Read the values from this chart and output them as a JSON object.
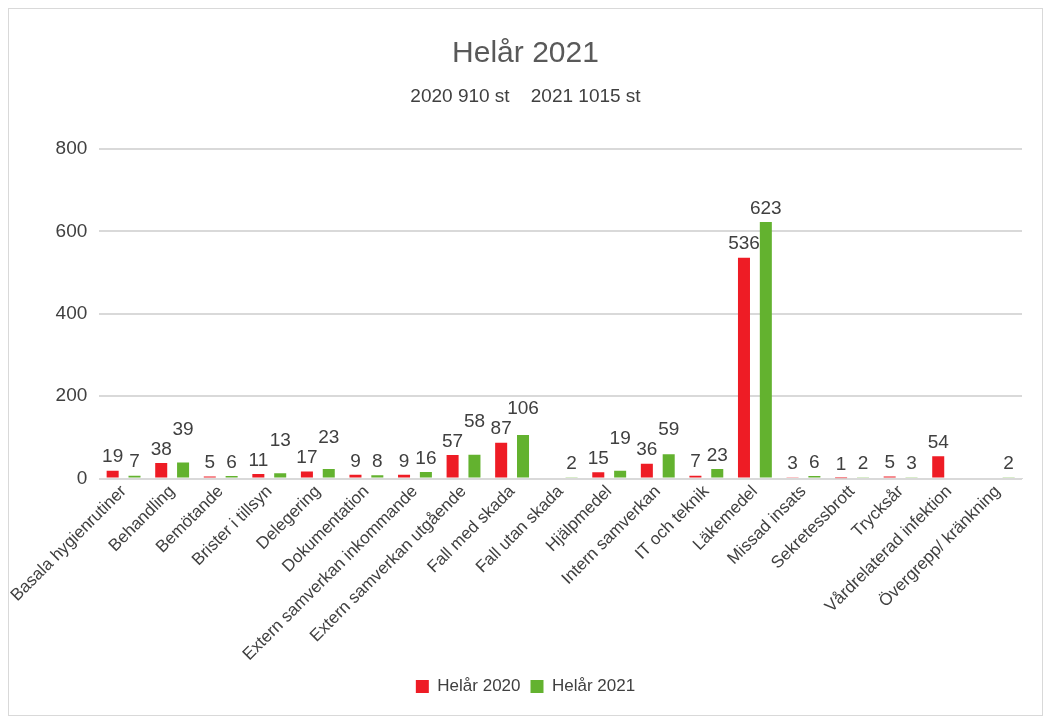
{
  "chart_data": {
    "type": "bar",
    "title": "Helår 2021",
    "subtitle": "2020 910 st    2021 1015 st",
    "categories": [
      "Basala hygienrutiner",
      "Behandling",
      "Bemötande",
      "Brister i tillsyn",
      "Delegering",
      "Dokumentation",
      "Extern samverkan inkommande",
      "Extern samverkan utgående",
      "Fall med skada",
      "Fall utan skada",
      "Hjälpmedel",
      "Intern samverkan",
      "IT och teknik",
      "Läkemedel",
      "Missad insats",
      "Sekretessbrott",
      "Trycksår",
      "Vårdrelaterad infektion",
      "Övergrepp/ kränkning"
    ],
    "series": [
      {
        "name": "Helår 2020",
        "color": "#ee1c25",
        "values": [
          19,
          38,
          5,
          11,
          17,
          9,
          9,
          57,
          87,
          null,
          15,
          36,
          7,
          536,
          3,
          1,
          5,
          54,
          null
        ]
      },
      {
        "name": "Helår 2021",
        "color": "#63b22f",
        "values": [
          7,
          39,
          6,
          13,
          23,
          8,
          16,
          58,
          106,
          2,
          19,
          59,
          23,
          623,
          6,
          2,
          3,
          null,
          2
        ]
      }
    ],
    "ylim": [
      0,
      800
    ],
    "yticks": [
      0,
      200,
      400,
      600,
      800
    ],
    "grid": "y",
    "legend": "bottom",
    "data_labels": true
  }
}
